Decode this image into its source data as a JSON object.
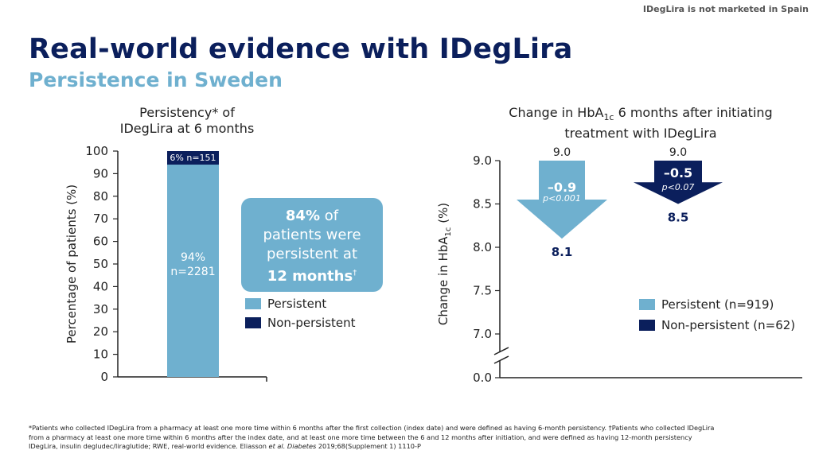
{
  "header": {
    "disclaimer": "IDegLira is not marketed in Spain",
    "title": "Real-world evidence with IDegLira",
    "subtitle": "Persistence in Sweden"
  },
  "colors": {
    "persistent": "#6fb0cf",
    "non_persistent": "#0b1f5c",
    "title": "#0b1f5c"
  },
  "left_chart": {
    "title_line1": "Persistency* of",
    "title_line2": "IDegLira at 6 months",
    "ylabel": "Percentage of patients (%)",
    "callout": {
      "pct": "84%",
      "line1_rest": " of",
      "line2": "patients were",
      "line3": "persistent at",
      "line4": "12 months",
      "dagger": "†"
    },
    "legend": {
      "persistent": "Persistent",
      "non_persistent": "Non-persistent"
    }
  },
  "right_chart": {
    "title_line1": "Change in HbA",
    "title_sub": "1c",
    "title_line1_rest": " 6 months after initiating",
    "title_line2": "treatment with IDegLira",
    "ylabel_main": "Change in HbA",
    "ylabel_sub": "1c",
    "ylabel_rest": " (%)",
    "legend": {
      "persistent": "Persistent (n=919)",
      "non_persistent": "Non-persistent (n=62)"
    }
  },
  "chart_data": [
    {
      "type": "bar",
      "title": "Persistency* of IDegLira at 6 months",
      "ylabel": "Percentage of patients (%)",
      "ylim": [
        0,
        100
      ],
      "yticks": [
        0,
        10,
        20,
        30,
        40,
        50,
        60,
        70,
        80,
        90,
        100
      ],
      "stack": [
        {
          "name": "Persistent",
          "value": 94,
          "label_pct": "94%",
          "label_n": "n=2281"
        },
        {
          "name": "Non-persistent",
          "value": 6,
          "label": "6% n=151"
        }
      ]
    },
    {
      "type": "bar",
      "title": "Change in HbA1c 6 months after initiating treatment with IDegLira",
      "ylabel": "Change in HbA1c (%)",
      "ylim": [
        7.0,
        9.0
      ],
      "yticks": [
        7.0,
        7.5,
        8.0,
        8.5,
        9.0
      ],
      "baseline_tick": "0.0",
      "series": [
        {
          "name": "Persistent (n=919)",
          "start": 9.0,
          "end": 8.1,
          "start_label": "9.0",
          "end_label": "8.1",
          "change": "–0.9",
          "p": "p<0.001"
        },
        {
          "name": "Non-persistent (n=62)",
          "start": 9.0,
          "end": 8.5,
          "start_label": "9.0",
          "end_label": "8.5",
          "change": "–0.5",
          "p": "p<0.07"
        }
      ]
    }
  ],
  "footnote": {
    "line1": "*Patients who collected IDegLira from a pharmacy at least one more time within 6 months after the first collection (index date) and were defined as having 6-month persistency. †Patients who collected IDegLira",
    "line2": "from a pharmacy at least one more time within 6 months after the index date, and at least one more time between the 6 and 12 months after initiation, and were defined as having 12-month persistency",
    "line3_pre": "IDegLira, insulin degludec/liraglutide; RWE, real-world evidence. Eliasson ",
    "line3_etal": "et al.",
    "line3_journal": " Diabetes",
    "line3_post": " 2019;68(Supplement 1) 1110-P"
  }
}
